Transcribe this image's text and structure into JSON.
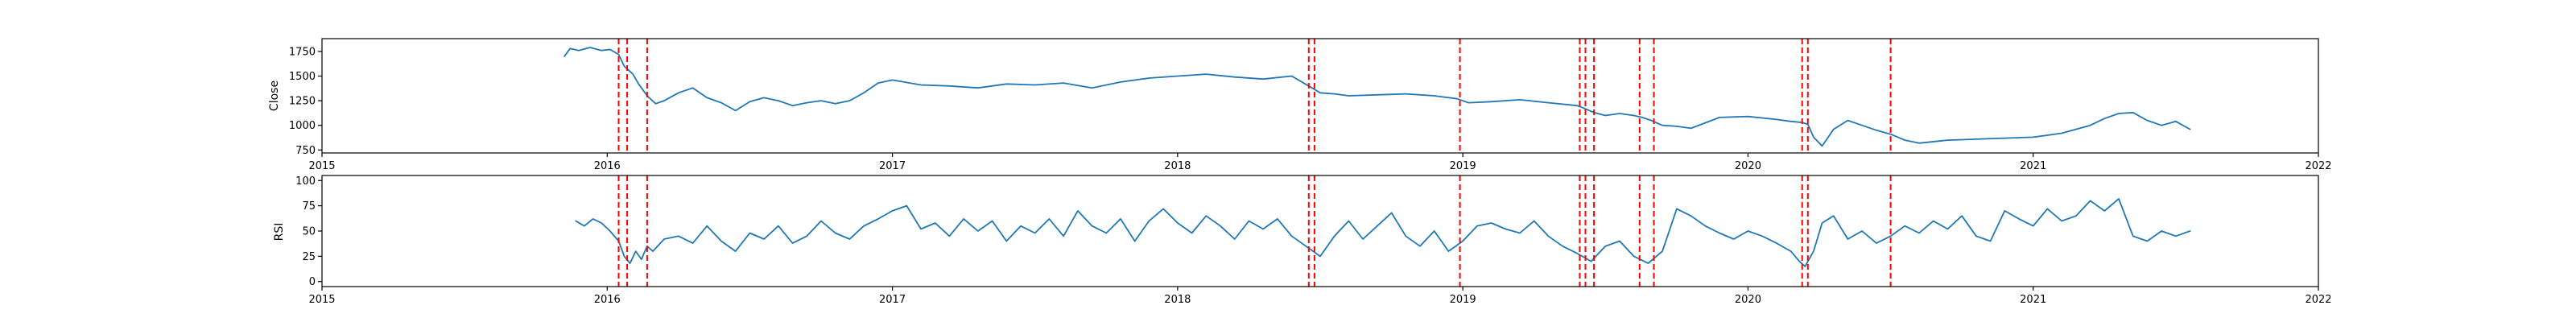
{
  "colors": {
    "series": "#1f77b4",
    "event": "#ff0000",
    "axis": "#000000",
    "background": "#ffffff"
  },
  "chart_data": [
    {
      "type": "line",
      "title": "",
      "xlabel": "",
      "ylabel": "Close",
      "xlim": [
        2015.0,
        2022.0
      ],
      "ylim": [
        720,
        1880
      ],
      "x_ticks": [
        2015,
        2016,
        2017,
        2018,
        2019,
        2020,
        2021,
        2022
      ],
      "x_tick_labels": [
        "2015",
        "2016",
        "2017",
        "2018",
        "2019",
        "2020",
        "2021",
        "2022"
      ],
      "y_ticks": [
        750,
        1000,
        1250,
        1500,
        1750
      ],
      "y_tick_labels": [
        "750",
        "1000",
        "1250",
        "1500",
        "1750"
      ],
      "grid": false,
      "legend": "none",
      "series": [
        {
          "x": [
            2015.85,
            2015.87,
            2015.9,
            2015.94,
            2015.98,
            2016.01,
            2016.04,
            2016.06,
            2016.09,
            2016.11,
            2016.14,
            2016.17,
            2016.2,
            2016.25,
            2016.3,
            2016.35,
            2016.4,
            2016.45,
            2016.5,
            2016.55,
            2016.6,
            2016.65,
            2016.7,
            2016.75,
            2016.8,
            2016.85,
            2016.9,
            2016.95,
            2017.0,
            2017.1,
            2017.2,
            2017.3,
            2017.4,
            2017.5,
            2017.6,
            2017.7,
            2017.8,
            2017.9,
            2018.0,
            2018.1,
            2018.2,
            2018.3,
            2018.4,
            2018.46,
            2018.5,
            2018.55,
            2018.6,
            2018.7,
            2018.8,
            2018.9,
            2018.98,
            2019.02,
            2019.1,
            2019.2,
            2019.3,
            2019.4,
            2019.42,
            2019.46,
            2019.5,
            2019.55,
            2019.6,
            2019.63,
            2019.66,
            2019.7,
            2019.75,
            2019.8,
            2019.9,
            2020.0,
            2020.1,
            2020.15,
            2020.19,
            2020.21,
            2020.23,
            2020.26,
            2020.3,
            2020.35,
            2020.4,
            2020.45,
            2020.5,
            2020.55,
            2020.6,
            2020.7,
            2020.8,
            2020.9,
            2021.0,
            2021.05,
            2021.1,
            2021.15,
            2021.2,
            2021.25,
            2021.3,
            2021.35,
            2021.4,
            2021.45,
            2021.5,
            2021.55
          ],
          "y": [
            1700,
            1780,
            1760,
            1790,
            1760,
            1770,
            1720,
            1600,
            1520,
            1420,
            1300,
            1220,
            1250,
            1330,
            1380,
            1280,
            1230,
            1150,
            1240,
            1280,
            1250,
            1200,
            1230,
            1250,
            1220,
            1250,
            1330,
            1430,
            1460,
            1410,
            1400,
            1380,
            1420,
            1410,
            1430,
            1380,
            1440,
            1480,
            1500,
            1520,
            1490,
            1470,
            1500,
            1400,
            1330,
            1320,
            1300,
            1310,
            1320,
            1300,
            1270,
            1230,
            1240,
            1260,
            1230,
            1200,
            1180,
            1130,
            1100,
            1120,
            1100,
            1080,
            1050,
            1000,
            990,
            970,
            1080,
            1090,
            1060,
            1040,
            1030,
            1010,
            880,
            790,
            960,
            1050,
            1000,
            950,
            910,
            850,
            820,
            850,
            860,
            870,
            880,
            900,
            920,
            960,
            1000,
            1070,
            1120,
            1130,
            1050,
            1000,
            1040,
            960
          ]
        }
      ],
      "event_lines_x": [
        2016.04,
        2016.07,
        2016.14,
        2018.46,
        2018.48,
        2018.99,
        2019.41,
        2019.43,
        2019.46,
        2019.62,
        2019.67,
        2020.19,
        2020.21,
        2020.5
      ]
    },
    {
      "type": "line",
      "title": "",
      "xlabel": "",
      "ylabel": "RSI",
      "xlim": [
        2015.0,
        2022.0
      ],
      "ylim": [
        -5,
        105
      ],
      "x_ticks": [
        2015,
        2016,
        2017,
        2018,
        2019,
        2020,
        2021,
        2022
      ],
      "x_tick_labels": [
        "2015",
        "2016",
        "2017",
        "2018",
        "2019",
        "2020",
        "2021",
        "2022"
      ],
      "y_ticks": [
        0,
        25,
        50,
        75,
        100
      ],
      "y_tick_labels": [
        "0",
        "25",
        "50",
        "75",
        "100"
      ],
      "grid": false,
      "legend": "none",
      "series": [
        {
          "x": [
            2015.89,
            2015.92,
            2015.95,
            2015.98,
            2016.01,
            2016.04,
            2016.06,
            2016.08,
            2016.1,
            2016.12,
            2016.14,
            2016.16,
            2016.2,
            2016.25,
            2016.3,
            2016.35,
            2016.4,
            2016.45,
            2016.5,
            2016.55,
            2016.6,
            2016.65,
            2016.7,
            2016.75,
            2016.8,
            2016.85,
            2016.9,
            2016.95,
            2017.0,
            2017.05,
            2017.1,
            2017.15,
            2017.2,
            2017.25,
            2017.3,
            2017.35,
            2017.4,
            2017.45,
            2017.5,
            2017.55,
            2017.6,
            2017.65,
            2017.7,
            2017.75,
            2017.8,
            2017.85,
            2017.9,
            2017.95,
            2018.0,
            2018.05,
            2018.1,
            2018.15,
            2018.2,
            2018.25,
            2018.3,
            2018.35,
            2018.4,
            2018.45,
            2018.5,
            2018.55,
            2018.6,
            2018.65,
            2018.7,
            2018.75,
            2018.8,
            2018.85,
            2018.9,
            2018.95,
            2019.0,
            2019.05,
            2019.1,
            2019.15,
            2019.2,
            2019.25,
            2019.3,
            2019.35,
            2019.4,
            2019.45,
            2019.5,
            2019.55,
            2019.6,
            2019.65,
            2019.7,
            2019.75,
            2019.8,
            2019.85,
            2019.9,
            2019.95,
            2020.0,
            2020.05,
            2020.1,
            2020.15,
            2020.18,
            2020.2,
            2020.23,
            2020.26,
            2020.3,
            2020.35,
            2020.4,
            2020.45,
            2020.5,
            2020.55,
            2020.6,
            2020.65,
            2020.7,
            2020.75,
            2020.8,
            2020.85,
            2020.9,
            2020.95,
            2021.0,
            2021.05,
            2021.1,
            2021.15,
            2021.2,
            2021.25,
            2021.3,
            2021.35,
            2021.4,
            2021.45,
            2021.5,
            2021.55
          ],
          "y": [
            60,
            55,
            62,
            58,
            50,
            40,
            25,
            18,
            30,
            22,
            35,
            30,
            42,
            45,
            38,
            55,
            40,
            30,
            48,
            42,
            55,
            38,
            45,
            60,
            48,
            42,
            55,
            62,
            70,
            75,
            52,
            58,
            45,
            62,
            50,
            60,
            40,
            55,
            48,
            62,
            45,
            70,
            55,
            48,
            62,
            40,
            60,
            72,
            58,
            48,
            65,
            55,
            42,
            60,
            52,
            62,
            45,
            35,
            25,
            45,
            60,
            42,
            55,
            68,
            45,
            35,
            50,
            30,
            40,
            55,
            58,
            52,
            48,
            60,
            45,
            35,
            28,
            20,
            35,
            40,
            25,
            18,
            30,
            72,
            65,
            55,
            48,
            42,
            50,
            45,
            38,
            30,
            20,
            15,
            30,
            58,
            65,
            42,
            50,
            38,
            45,
            55,
            48,
            60,
            52,
            65,
            45,
            40,
            70,
            62,
            55,
            72,
            60,
            65,
            80,
            70,
            82,
            45,
            40,
            50,
            45,
            50
          ]
        }
      ],
      "event_lines_x": [
        2016.04,
        2016.07,
        2016.14,
        2018.46,
        2018.48,
        2018.99,
        2019.41,
        2019.43,
        2019.46,
        2019.62,
        2019.67,
        2020.19,
        2020.21,
        2020.5
      ]
    }
  ]
}
